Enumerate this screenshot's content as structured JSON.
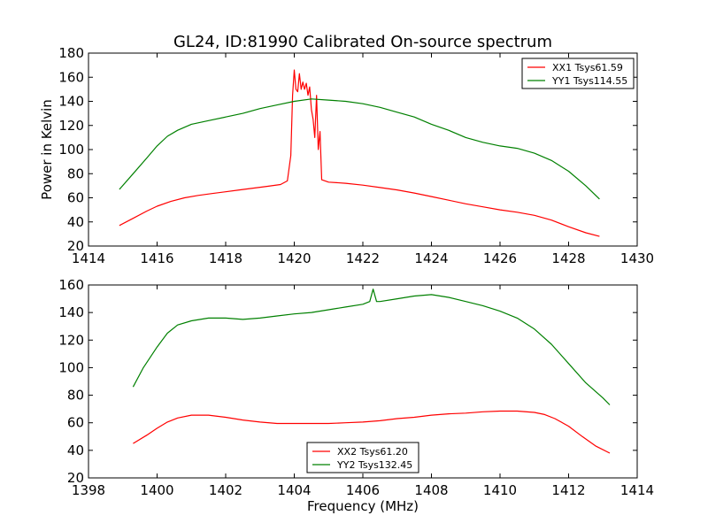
{
  "chart_data": [
    {
      "type": "line",
      "title": "GL24, ID:81990 Calibrated On-source spectrum",
      "xlabel": "",
      "ylabel": "Power in Kelvin",
      "xlim": [
        1414,
        1430
      ],
      "ylim": [
        20,
        180
      ],
      "xticks": [
        "1414",
        "1416",
        "1418",
        "1420",
        "1422",
        "1424",
        "1426",
        "1428",
        "1430"
      ],
      "yticks": [
        "20",
        "40",
        "60",
        "80",
        "100",
        "120",
        "140",
        "160",
        "180"
      ],
      "legend_position": "top-right",
      "series": [
        {
          "name": "XX1 Tsys61.59",
          "color": "#ff0000",
          "x": [
            1414.9,
            1415.3,
            1415.7,
            1416.0,
            1416.4,
            1416.8,
            1417.2,
            1417.6,
            1418.0,
            1418.4,
            1418.8,
            1419.2,
            1419.6,
            1419.8,
            1419.9,
            1419.95,
            1420.0,
            1420.05,
            1420.1,
            1420.15,
            1420.2,
            1420.25,
            1420.3,
            1420.35,
            1420.4,
            1420.45,
            1420.5,
            1420.55,
            1420.6,
            1420.65,
            1420.7,
            1420.75,
            1420.8,
            1421.0,
            1421.5,
            1422.0,
            1422.5,
            1423.0,
            1423.5,
            1424.0,
            1424.5,
            1425.0,
            1425.5,
            1426.0,
            1426.5,
            1427.0,
            1427.5,
            1428.0,
            1428.5,
            1428.9
          ],
          "y": [
            37,
            43,
            49,
            53,
            57,
            60,
            62,
            63.5,
            65,
            66.5,
            68,
            69.5,
            71,
            74,
            95,
            145,
            166,
            150,
            148,
            163,
            150,
            156,
            150,
            155,
            145,
            152,
            133,
            125,
            110,
            145,
            100,
            115,
            75,
            73,
            72,
            70.5,
            68.5,
            66.5,
            64,
            61,
            58,
            55,
            52.5,
            50,
            48,
            45.5,
            41.5,
            36,
            31,
            28
          ]
        },
        {
          "name": "YY1 Tsys114.55",
          "color": "#008000",
          "x": [
            1414.9,
            1415.3,
            1415.7,
            1416.0,
            1416.3,
            1416.6,
            1417.0,
            1417.5,
            1418.0,
            1418.5,
            1419.0,
            1419.5,
            1420.0,
            1420.5,
            1421.0,
            1421.5,
            1422.0,
            1422.5,
            1423.0,
            1423.5,
            1424.0,
            1424.5,
            1425.0,
            1425.5,
            1426.0,
            1426.5,
            1427.0,
            1427.5,
            1428.0,
            1428.5,
            1428.9
          ],
          "y": [
            67,
            80,
            93,
            103,
            111,
            116,
            121,
            124,
            127,
            130,
            134,
            137,
            140,
            142,
            141,
            140,
            138,
            135,
            131,
            127,
            121,
            116,
            110,
            106,
            103,
            101,
            97,
            91,
            82,
            70,
            59
          ]
        }
      ]
    },
    {
      "type": "line",
      "title": "",
      "xlabel": "Frequency (MHz)",
      "ylabel": "",
      "xlim": [
        1398,
        1414
      ],
      "ylim": [
        20,
        160
      ],
      "xticks": [
        "1398",
        "1400",
        "1402",
        "1404",
        "1406",
        "1408",
        "1410",
        "1412",
        "1414"
      ],
      "yticks": [
        "20",
        "40",
        "60",
        "80",
        "100",
        "120",
        "140",
        "160"
      ],
      "legend_position": "bottom-center",
      "series": [
        {
          "name": "XX2 Tsys61.20",
          "color": "#ff0000",
          "x": [
            1399.3,
            1399.7,
            1400.0,
            1400.3,
            1400.6,
            1401.0,
            1401.5,
            1402.0,
            1402.5,
            1403.0,
            1403.5,
            1404.0,
            1404.5,
            1405.0,
            1405.5,
            1406.0,
            1406.5,
            1407.0,
            1407.5,
            1408.0,
            1408.5,
            1409.0,
            1409.5,
            1410.0,
            1410.5,
            1411.0,
            1411.3,
            1411.6,
            1412.0,
            1412.4,
            1412.8,
            1413.2
          ],
          "y": [
            45,
            51,
            56,
            60.5,
            63.5,
            65.5,
            65.5,
            64,
            62,
            60.5,
            59.5,
            59.5,
            59.5,
            59.5,
            60,
            60.5,
            61.5,
            63,
            64,
            65.5,
            66.5,
            67,
            68,
            68.5,
            68.5,
            67.5,
            66,
            63,
            57.5,
            50,
            43,
            38
          ]
        },
        {
          "name": "YY2 Tsys132.45",
          "color": "#008000",
          "x": [
            1399.3,
            1399.6,
            1400.0,
            1400.3,
            1400.6,
            1401.0,
            1401.5,
            1402.0,
            1402.5,
            1403.0,
            1403.5,
            1404.0,
            1404.5,
            1405.0,
            1405.5,
            1406.0,
            1406.2,
            1406.3,
            1406.4,
            1406.5,
            1407.0,
            1407.5,
            1408.0,
            1408.5,
            1409.0,
            1409.5,
            1410.0,
            1410.5,
            1411.0,
            1411.5,
            1412.0,
            1412.5,
            1413.0,
            1413.2
          ],
          "y": [
            86,
            100,
            115,
            125,
            131,
            134,
            136,
            136,
            135,
            136,
            137.5,
            139,
            140,
            142,
            144,
            146,
            148,
            157,
            148,
            148,
            150,
            152,
            153,
            151,
            148,
            145,
            141,
            136,
            128,
            117,
            103,
            89,
            78,
            73
          ]
        }
      ]
    }
  ]
}
